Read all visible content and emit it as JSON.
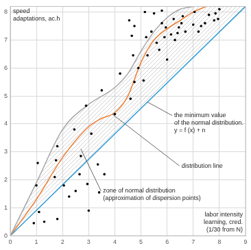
{
  "chart_data": {
    "type": "scatter",
    "y_label": [
      "speed",
      "adaptations, ac.h"
    ],
    "x_label": [
      "labor intensity",
      "learning, cred.",
      "(1/30 from N)"
    ],
    "xlim": [
      0,
      9
    ],
    "xticks": [
      0,
      1,
      2,
      3,
      4,
      5,
      6,
      7,
      8,
      9
    ],
    "ylim": [
      0,
      8.2
    ],
    "yticks": [
      0,
      1,
      2,
      3,
      4,
      5,
      6,
      7,
      8
    ],
    "grid": true,
    "series": [
      {
        "type": "scatter",
        "color": "#000000",
        "marker": "circle",
        "x": [
          0.9,
          1.0,
          1.05,
          1.1,
          1.3,
          1.7,
          1.75,
          1.8,
          1.8,
          2.05,
          2.25,
          2.45,
          2.5,
          2.65,
          2.7,
          2.9,
          2.95,
          3.0,
          3.1,
          3.35,
          3.4,
          3.5,
          3.6,
          4.0,
          4.2,
          4.55,
          4.6,
          4.65,
          4.75,
          4.7,
          4.75,
          4.9,
          5.1,
          5.15,
          5.25,
          5.2,
          5.4,
          5.5,
          5.6,
          5.7,
          5.8,
          5.8,
          5.9,
          5.95,
          6.0,
          6.15,
          6.25,
          6.3,
          6.4,
          6.45,
          6.55,
          6.6,
          6.7,
          7.0,
          7.05,
          7.2,
          7.3,
          7.45,
          7.6,
          7.8,
          7.85,
          8.0,
          7.95
        ],
        "y": [
          0.45,
          1.8,
          2.6,
          0.85,
          0.5,
          2.1,
          2.7,
          3.2,
          0.6,
          1.8,
          1.4,
          3.8,
          1.6,
          2.2,
          2.85,
          4.65,
          1.85,
          0.9,
          3.65,
          2.55,
          1.55,
          5.2,
          2.2,
          4.35,
          5.8,
          7.7,
          4.9,
          7.15,
          7.5,
          6.45,
          5.5,
          6.0,
          5.55,
          8.0,
          6.45,
          7.1,
          7.3,
          7.95,
          6.9,
          6.65,
          7.6,
          8.05,
          7.1,
          7.45,
          6.3,
          7.2,
          7.75,
          7.0,
          7.25,
          7.45,
          7.6,
          7.85,
          7.3,
          7.55,
          8.0,
          7.3,
          7.5,
          7.6,
          7.9,
          7.7,
          7.95,
          8.1,
          7.75
        ]
      },
      {
        "type": "line",
        "color": "#a6a6a6",
        "line_style": "solid",
        "x": [
          0,
          1,
          2,
          3,
          4,
          4.5,
          5,
          5.5,
          6,
          6.5,
          7
        ],
        "y": [
          0,
          1.9,
          3.8,
          4.7,
          5.3,
          5.8,
          6.6,
          7.3,
          7.8,
          8.1,
          8.2
        ]
      },
      {
        "type": "line",
        "color": "#ed7d31",
        "line_style": "solid",
        "x": [
          0,
          1,
          2,
          3,
          3.5,
          4,
          4.5,
          5,
          5.5,
          6,
          6.5,
          7,
          7.5
        ],
        "y": [
          0,
          1.3,
          2.8,
          3.9,
          4.2,
          4.4,
          5.0,
          6.2,
          7.0,
          7.4,
          7.7,
          8.0,
          8.2
        ]
      },
      {
        "type": "line",
        "color": "#2e9bd6",
        "line_style": "solid",
        "x": [
          0,
          9
        ],
        "y": [
          0,
          8.2
        ]
      }
    ],
    "annotations": [
      {
        "text": [
          "the minimum value",
          "of the normal distribution.",
          "y = f (x) + n"
        ]
      },
      {
        "text": [
          "distribution line"
        ]
      },
      {
        "text": [
          "zone of normal distribution",
          "(approximation of dispersion points)"
        ]
      }
    ]
  }
}
